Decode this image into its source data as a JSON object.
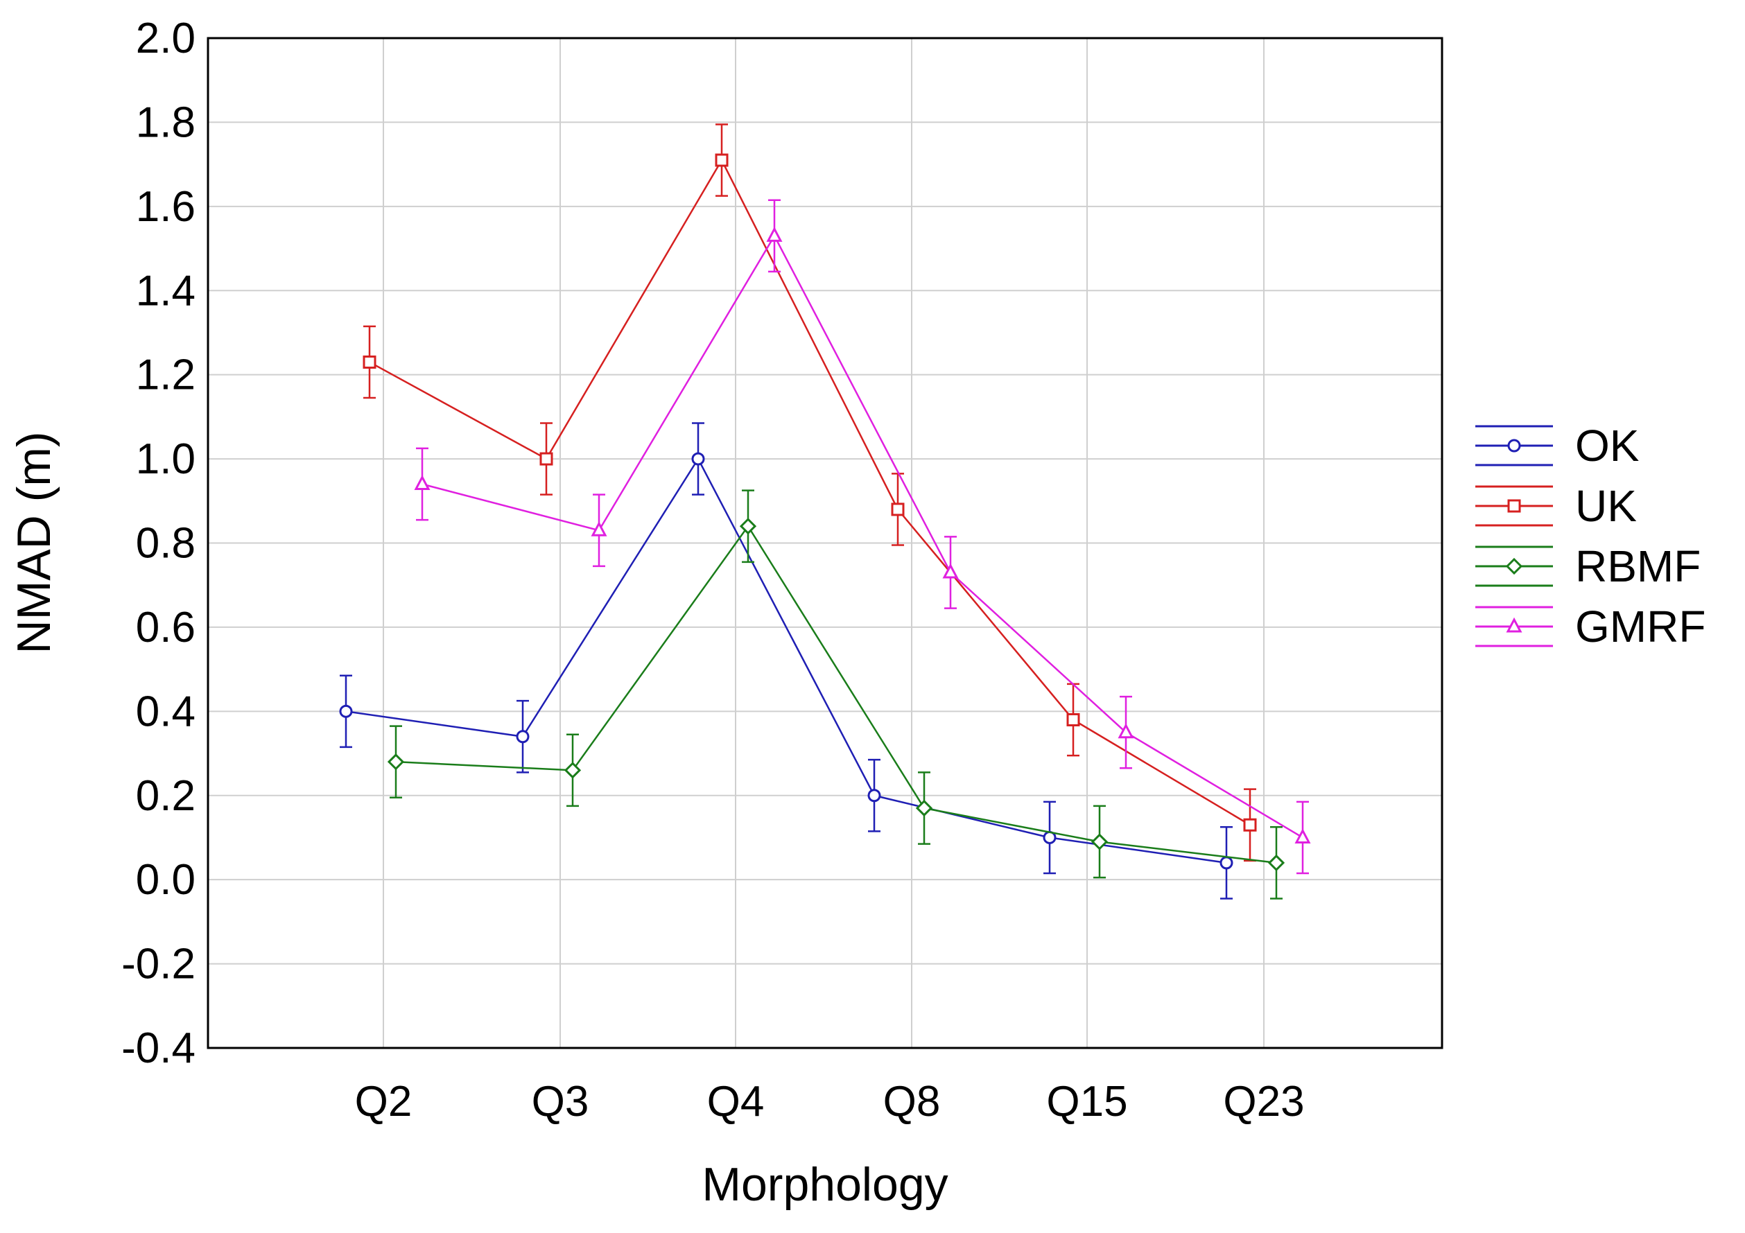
{
  "chart_data": {
    "type": "line",
    "xlabel": "Morphology",
    "ylabel": "NMAD (m)",
    "ylim": [
      -0.4,
      2.0
    ],
    "yticks": [
      "-0.4",
      "-0.2",
      "0.0",
      "0.2",
      "0.4",
      "0.6",
      "0.8",
      "1.0",
      "1.2",
      "1.4",
      "1.6",
      "1.8",
      "2.0"
    ],
    "categories": [
      "Q2",
      "Q3",
      "Q4",
      "Q8",
      "Q15",
      "Q23"
    ],
    "grid": true,
    "legend_position": "right",
    "error_bar_halfwidth": 0.085,
    "series": [
      {
        "name": "OK",
        "color": "#1f1fb4",
        "marker": "circle",
        "values": [
          0.4,
          0.34,
          1.0,
          0.2,
          0.1,
          0.04
        ]
      },
      {
        "name": "UK",
        "color": "#d62020",
        "marker": "square",
        "values": [
          1.23,
          1.0,
          1.71,
          0.88,
          0.38,
          0.13
        ]
      },
      {
        "name": "RBMF",
        "color": "#1a7d1a",
        "marker": "diamond",
        "values": [
          0.28,
          0.26,
          0.84,
          0.17,
          0.09,
          0.04
        ]
      },
      {
        "name": "GMRF",
        "color": "#e020e0",
        "marker": "triangle",
        "values": [
          0.94,
          0.83,
          1.53,
          0.73,
          0.35,
          0.1
        ]
      }
    ]
  }
}
